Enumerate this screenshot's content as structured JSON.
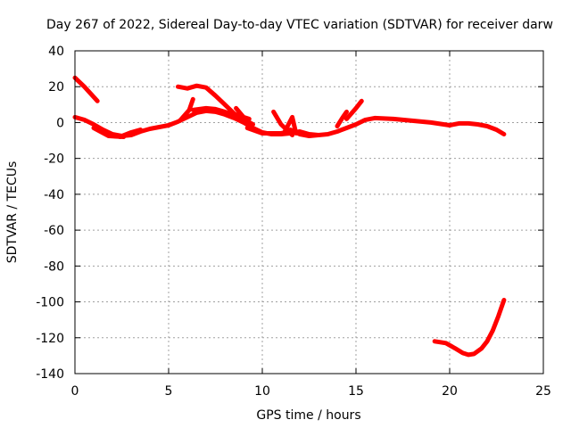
{
  "chart_data": {
    "type": "line",
    "title": "Day 267 of 2022, Sidereal Day-to-day VTEC variation (SDTVAR) for receiver darw",
    "xlabel": "GPS time / hours",
    "ylabel": "SDTVAR / TECUs",
    "xlim": [
      0,
      25
    ],
    "ylim": [
      -140,
      40
    ],
    "xticks": [
      0,
      5,
      10,
      15,
      20,
      25
    ],
    "yticks": [
      -140,
      -120,
      -100,
      -80,
      -60,
      -40,
      -20,
      0,
      20,
      40
    ],
    "grid": true,
    "line_color": "#ff0000",
    "series": [
      {
        "name": "main",
        "points": [
          [
            0,
            3
          ],
          [
            0.5,
            1.5
          ],
          [
            1,
            -1
          ],
          [
            1.5,
            -4
          ],
          [
            2,
            -6.5
          ],
          [
            2.5,
            -7.5
          ],
          [
            3,
            -7
          ],
          [
            3.5,
            -5
          ],
          [
            4,
            -3.5
          ],
          [
            4.5,
            -2.5
          ],
          [
            5,
            -1.5
          ],
          [
            5.5,
            0.5
          ],
          [
            6,
            3
          ],
          [
            6.5,
            5.5
          ],
          [
            7,
            6.5
          ],
          [
            7.5,
            6
          ],
          [
            8,
            4.5
          ],
          [
            8.5,
            2.5
          ],
          [
            9,
            0
          ],
          [
            9.5,
            -3
          ],
          [
            10,
            -5.5
          ],
          [
            10.5,
            -6.5
          ],
          [
            11,
            -6.5
          ],
          [
            11.5,
            -6
          ],
          [
            12,
            -5
          ],
          [
            12.5,
            -6.5
          ],
          [
            13,
            -7
          ],
          [
            13.5,
            -6.5
          ],
          [
            14,
            -5
          ],
          [
            14.5,
            -3
          ],
          [
            15,
            -1
          ],
          [
            15.5,
            1.5
          ],
          [
            16,
            2.5
          ],
          [
            17,
            2
          ],
          [
            18,
            1
          ],
          [
            19,
            0
          ],
          [
            20,
            -1.5
          ],
          [
            20.5,
            -0.5
          ],
          [
            21,
            -0.5
          ],
          [
            21.5,
            -1
          ],
          [
            22,
            -2
          ],
          [
            22.5,
            -4
          ],
          [
            22.9,
            -6.5
          ]
        ]
      },
      {
        "name": "arc-early",
        "points": [
          [
            0,
            25
          ],
          [
            0.5,
            20
          ],
          [
            1.2,
            12
          ]
        ]
      },
      {
        "name": "dip-2",
        "points": [
          [
            1,
            -3
          ],
          [
            1.8,
            -7.5
          ],
          [
            2.6,
            -8
          ]
        ]
      },
      {
        "name": "dip-3",
        "points": [
          [
            2.4,
            -8
          ],
          [
            3,
            -5.5
          ],
          [
            3.5,
            -4
          ]
        ]
      },
      {
        "name": "spike-6",
        "points": [
          [
            5.6,
            1
          ],
          [
            6.1,
            7
          ],
          [
            6.3,
            13
          ]
        ]
      },
      {
        "name": "arc-top-6",
        "points": [
          [
            5.5,
            20
          ],
          [
            6,
            19
          ],
          [
            6.5,
            20.5
          ],
          [
            7,
            19.5
          ],
          [
            7.5,
            15
          ],
          [
            8,
            10
          ],
          [
            8.5,
            5
          ],
          [
            9,
            2
          ],
          [
            9.5,
            -1
          ]
        ]
      },
      {
        "name": "hump-7",
        "points": [
          [
            6.3,
            7
          ],
          [
            7,
            8
          ],
          [
            7.5,
            7.5
          ],
          [
            8,
            6
          ],
          [
            8.5,
            4
          ],
          [
            9,
            2
          ]
        ]
      },
      {
        "name": "spike-9",
        "points": [
          [
            8.6,
            8
          ],
          [
            9,
            3
          ],
          [
            9.3,
            2
          ]
        ]
      },
      {
        "name": "dip-10",
        "points": [
          [
            9.2,
            -3
          ],
          [
            10,
            -6
          ],
          [
            11,
            -6
          ],
          [
            11.5,
            -5
          ]
        ]
      },
      {
        "name": "spike-11",
        "points": [
          [
            10.6,
            6
          ],
          [
            11,
            -1
          ],
          [
            11.3,
            -4
          ],
          [
            11.6,
            -7
          ]
        ]
      },
      {
        "name": "spike-11b",
        "points": [
          [
            11.2,
            -5
          ],
          [
            11.6,
            3
          ],
          [
            11.8,
            -6
          ]
        ]
      },
      {
        "name": "dip-12",
        "points": [
          [
            11.5,
            -4
          ],
          [
            12,
            -6.5
          ],
          [
            12.5,
            -7.5
          ],
          [
            13,
            -7
          ]
        ]
      },
      {
        "name": "spike-14",
        "points": [
          [
            14,
            -2
          ],
          [
            14.3,
            3
          ],
          [
            14.5,
            6
          ]
        ]
      },
      {
        "name": "spike-15",
        "points": [
          [
            14.5,
            2
          ],
          [
            15,
            8
          ],
          [
            15.3,
            12
          ]
        ]
      },
      {
        "name": "arc-late",
        "points": [
          [
            19.2,
            -122
          ],
          [
            19.8,
            -123
          ],
          [
            20.3,
            -126
          ],
          [
            20.7,
            -128.5
          ],
          [
            21,
            -129.5
          ],
          [
            21.3,
            -129
          ],
          [
            21.7,
            -126
          ],
          [
            22,
            -122
          ],
          [
            22.3,
            -116
          ],
          [
            22.6,
            -108
          ],
          [
            22.9,
            -99
          ]
        ]
      }
    ]
  }
}
